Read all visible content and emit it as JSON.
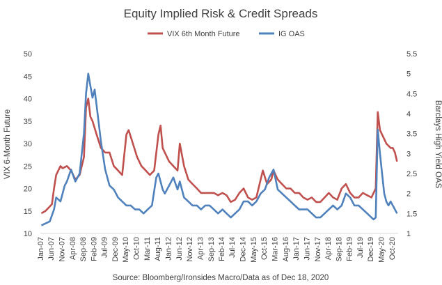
{
  "chart_data": {
    "type": "line",
    "title": "Equity Implied Risk & Credit Spreads",
    "source_note": "Source: Bloomberg/Ironsides Macro/Data as of Dec 18, 2020",
    "ylabel_left": "VIX 6-Month Future",
    "ylabel_right": "Barclays High Yield OAS",
    "xlabel": "",
    "ylim_left": [
      10,
      50
    ],
    "ylim_right": [
      1,
      5.5
    ],
    "yticks_left": [
      "10",
      "15",
      "20",
      "25",
      "30",
      "35",
      "40",
      "45",
      "50"
    ],
    "yticks_right": [
      "1",
      "1.5",
      "2",
      "2.5",
      "3",
      "3.5",
      "4",
      "4.5",
      "5",
      "5.5"
    ],
    "x_tick_labels": [
      "Jan-07",
      "Jun-07",
      "Nov-07",
      "Apr-08",
      "Sep-08",
      "Feb-09",
      "Jul-09",
      "Dec-09",
      "May-10",
      "Oct-10",
      "Mar-11",
      "Aug-11",
      "Jan-12",
      "Jun-12",
      "Nov-12",
      "Apr-13",
      "Sep-13",
      "Feb-14",
      "Jul-14",
      "Dec-14",
      "May-15",
      "Oct-15",
      "Mar-16",
      "Aug-16",
      "Jan-17",
      "Jun-17",
      "Nov-17",
      "Apr-18",
      "Sep-18",
      "Feb-19",
      "Jul-19",
      "Dec-19",
      "May-20",
      "Oct-20"
    ],
    "grid": false,
    "legend_position": "top-center",
    "series": [
      {
        "name": "VIX 6th Month Future",
        "color": "#c0504d",
        "axis": "left",
        "x": [
          "2007-01",
          "2007-03",
          "2007-06",
          "2007-07",
          "2007-08",
          "2007-10",
          "2007-11",
          "2008-01",
          "2008-03",
          "2008-05",
          "2008-07",
          "2008-09",
          "2008-10",
          "2008-11",
          "2008-12",
          "2009-01",
          "2009-03",
          "2009-05",
          "2009-07",
          "2009-09",
          "2009-11",
          "2010-01",
          "2010-03",
          "2010-05",
          "2010-06",
          "2010-08",
          "2010-10",
          "2010-12",
          "2011-02",
          "2011-04",
          "2011-06",
          "2011-08",
          "2011-09",
          "2011-10",
          "2011-11",
          "2012-01",
          "2012-03",
          "2012-05",
          "2012-06",
          "2012-08",
          "2012-10",
          "2012-12",
          "2013-02",
          "2013-04",
          "2013-06",
          "2013-08",
          "2013-10",
          "2013-12",
          "2014-02",
          "2014-04",
          "2014-06",
          "2014-08",
          "2014-10",
          "2014-12",
          "2015-02",
          "2015-04",
          "2015-06",
          "2015-08",
          "2015-09",
          "2015-11",
          "2016-01",
          "2016-02",
          "2016-04",
          "2016-06",
          "2016-08",
          "2016-10",
          "2016-12",
          "2017-02",
          "2017-04",
          "2017-06",
          "2017-08",
          "2017-10",
          "2017-12",
          "2018-02",
          "2018-04",
          "2018-06",
          "2018-08",
          "2018-10",
          "2018-12",
          "2019-02",
          "2019-04",
          "2019-06",
          "2019-08",
          "2019-10",
          "2019-12",
          "2020-02",
          "2020-03",
          "2020-04",
          "2020-05",
          "2020-06",
          "2020-07",
          "2020-08",
          "2020-09",
          "2020-10",
          "2020-11",
          "2020-12"
        ],
        "y": [
          14.5,
          15,
          16.5,
          20,
          23,
          25,
          24.5,
          25,
          24,
          22,
          23,
          27,
          38,
          40,
          36,
          35,
          32,
          29,
          28,
          28,
          25,
          24,
          23,
          32,
          33,
          30,
          27,
          25,
          24,
          23,
          24,
          32,
          34,
          29,
          28,
          26,
          25,
          24,
          30,
          25,
          22,
          21,
          20,
          19,
          19,
          19,
          19,
          18.5,
          19,
          18.5,
          17,
          17.5,
          19,
          20,
          18,
          17.5,
          18,
          22,
          24,
          21,
          22,
          24,
          22,
          21,
          20,
          20,
          19,
          19,
          18,
          17.5,
          18,
          17,
          17,
          18,
          19,
          18,
          17.5,
          20,
          21,
          19,
          18,
          18,
          19,
          18.5,
          18,
          20,
          37,
          33,
          32,
          31,
          30,
          29.5,
          29,
          29,
          28,
          26
        ]
      },
      {
        "name": "IG OAS",
        "color": "#4f81bd",
        "axis": "right",
        "x": [
          "2007-01",
          "2007-03",
          "2007-05",
          "2007-07",
          "2007-08",
          "2007-10",
          "2007-12",
          "2008-01",
          "2008-03",
          "2008-05",
          "2008-07",
          "2008-09",
          "2008-10",
          "2008-11",
          "2008-12",
          "2009-01",
          "2009-02",
          "2009-03",
          "2009-05",
          "2009-07",
          "2009-09",
          "2009-11",
          "2010-01",
          "2010-03",
          "2010-05",
          "2010-07",
          "2010-09",
          "2010-11",
          "2011-01",
          "2011-03",
          "2011-05",
          "2011-07",
          "2011-08",
          "2011-10",
          "2011-11",
          "2012-01",
          "2012-03",
          "2012-05",
          "2012-06",
          "2012-08",
          "2012-10",
          "2012-12",
          "2013-02",
          "2013-04",
          "2013-06",
          "2013-08",
          "2013-10",
          "2013-12",
          "2014-02",
          "2014-04",
          "2014-06",
          "2014-08",
          "2014-10",
          "2014-12",
          "2015-02",
          "2015-04",
          "2015-06",
          "2015-08",
          "2015-10",
          "2015-12",
          "2016-02",
          "2016-04",
          "2016-06",
          "2016-08",
          "2016-10",
          "2016-12",
          "2017-02",
          "2017-04",
          "2017-06",
          "2017-08",
          "2017-10",
          "2017-12",
          "2018-02",
          "2018-04",
          "2018-06",
          "2018-08",
          "2018-10",
          "2018-12",
          "2019-02",
          "2019-04",
          "2019-06",
          "2019-08",
          "2019-10",
          "2019-12",
          "2020-01",
          "2020-02",
          "2020-03",
          "2020-04",
          "2020-05",
          "2020-06",
          "2020-07",
          "2020-08",
          "2020-09",
          "2020-10",
          "2020-11",
          "2020-12"
        ],
        "y": [
          1.2,
          1.25,
          1.3,
          1.6,
          1.9,
          1.8,
          2.2,
          2.3,
          2.6,
          2.3,
          2.5,
          3.5,
          4.5,
          5.0,
          4.7,
          4.4,
          4.6,
          4.2,
          3.3,
          2.6,
          2.2,
          2.1,
          1.9,
          1.8,
          1.7,
          1.7,
          1.6,
          1.6,
          1.5,
          1.6,
          1.7,
          2.4,
          2.5,
          2.1,
          2.0,
          2.2,
          2.4,
          2.1,
          2.3,
          1.9,
          1.8,
          1.7,
          1.7,
          1.6,
          1.7,
          1.7,
          1.6,
          1.5,
          1.6,
          1.5,
          1.4,
          1.5,
          1.6,
          1.8,
          1.8,
          1.7,
          1.8,
          2.0,
          2.1,
          2.4,
          2.6,
          2.1,
          2.0,
          1.9,
          1.8,
          1.7,
          1.6,
          1.6,
          1.6,
          1.5,
          1.4,
          1.4,
          1.5,
          1.6,
          1.7,
          1.6,
          1.7,
          2.0,
          1.9,
          1.7,
          1.7,
          1.6,
          1.5,
          1.4,
          1.35,
          1.4,
          3.6,
          3.0,
          2.5,
          2.0,
          1.8,
          1.7,
          1.8,
          1.7,
          1.6,
          1.5
        ]
      }
    ]
  }
}
